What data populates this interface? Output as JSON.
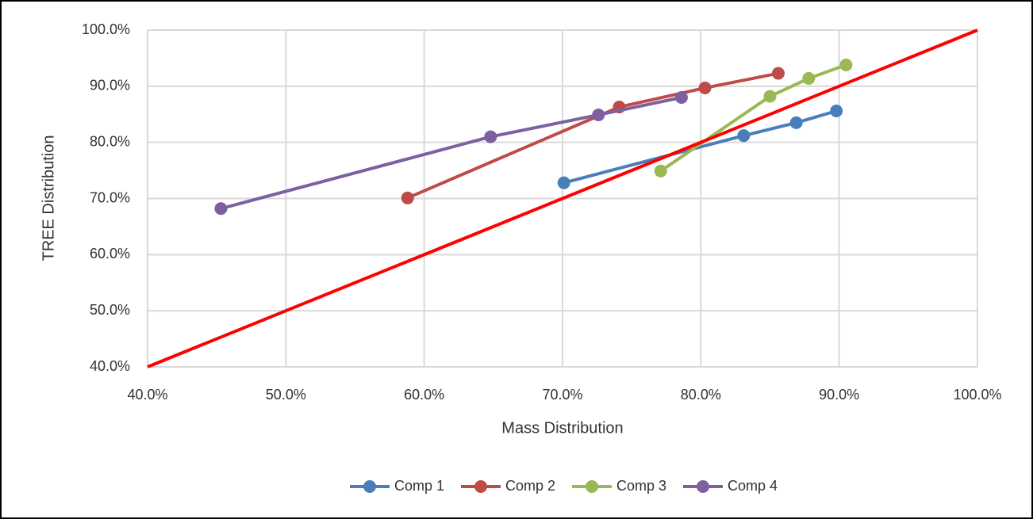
{
  "chart_data": {
    "type": "line_scatter",
    "x_label": "Mass Distribution",
    "y_label": "TREE Distribution",
    "xlim": [
      40,
      100
    ],
    "ylim": [
      40,
      100
    ],
    "xticks": [
      {
        "value": 40,
        "label": "40.0%"
      },
      {
        "value": 50,
        "label": "50.0%"
      },
      {
        "value": 60,
        "label": "60.0%"
      },
      {
        "value": 70,
        "label": "70.0%"
      },
      {
        "value": 80,
        "label": "80.0%"
      },
      {
        "value": 90,
        "label": "90.0%"
      },
      {
        "value": 100,
        "label": "100.0%"
      }
    ],
    "yticks": [
      {
        "value": 40,
        "label": "40.0%"
      },
      {
        "value": 50,
        "label": "50.0%"
      },
      {
        "value": 60,
        "label": "60.0%"
      },
      {
        "value": 70,
        "label": "70.0%"
      },
      {
        "value": 80,
        "label": "80.0%"
      },
      {
        "value": 90,
        "label": "90.0%"
      },
      {
        "value": 100,
        "label": "100.0%"
      }
    ],
    "grid": true,
    "legend": "bottom",
    "series": [
      {
        "name": "Comp 1",
        "color": "#4a7ebb",
        "x": [
          70.1,
          83.1,
          86.9,
          89.8
        ],
        "values": [
          72.8,
          81.2,
          83.5,
          85.6
        ]
      },
      {
        "name": "Comp 2",
        "color": "#be4b48",
        "x": [
          58.8,
          74.1,
          80.3,
          85.6
        ],
        "values": [
          70.1,
          86.3,
          89.7,
          92.3
        ]
      },
      {
        "name": "Comp 3",
        "color": "#98b954",
        "x": [
          77.1,
          85.0,
          87.8,
          90.5
        ],
        "values": [
          74.9,
          88.2,
          91.4,
          93.8
        ]
      },
      {
        "name": "Comp 4",
        "color": "#7d60a0",
        "x": [
          45.3,
          64.8,
          72.6,
          78.6
        ],
        "values": [
          68.2,
          81.0,
          84.9,
          88.0
        ]
      }
    ],
    "reference_line": {
      "color": "#ff0000",
      "x": [
        40,
        100
      ],
      "values": [
        40,
        100
      ]
    }
  }
}
